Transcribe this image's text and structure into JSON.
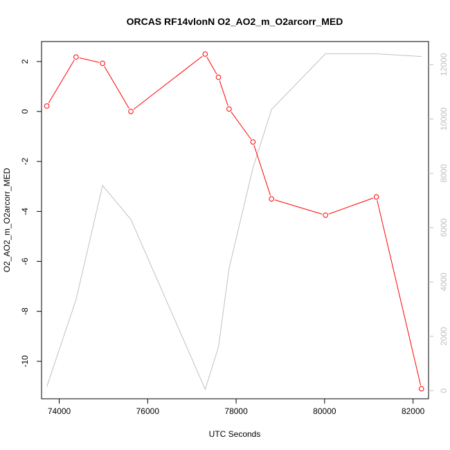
{
  "chart_data": {
    "type": "line",
    "title": "ORCAS RF14vlonN O2_AO2_m_O2arcorr_MED",
    "xlabel": "UTC Seconds",
    "ylabel": "O2_AO2_m_O2arcorr_MED",
    "xlim": [
      73600,
      82350
    ],
    "ylim": [
      -11.5,
      2.8
    ],
    "y2lim": [
      -300,
      12850
    ],
    "x_ticks": [
      74000,
      76000,
      78000,
      80000,
      82000
    ],
    "y_ticks": [
      -10,
      -8,
      -6,
      -4,
      -2,
      0,
      2
    ],
    "y2_ticks": [
      0,
      2000,
      4000,
      6000,
      8000,
      10000,
      12000
    ],
    "series": [
      {
        "role": "primary",
        "color": "#ff0000",
        "marker": "open-circle",
        "x": [
          73720,
          74380,
          74980,
          75620,
          77300,
          77600,
          77840,
          78380,
          78800,
          80020,
          81170,
          82190
        ],
        "y": [
          0.22,
          2.18,
          1.93,
          0.0,
          2.3,
          1.37,
          0.1,
          -1.22,
          -3.5,
          -4.15,
          -3.42,
          -11.1
        ]
      },
      {
        "role": "secondary-axis",
        "color": "#c0c0c0",
        "marker": "none",
        "x": [
          73720,
          74380,
          74980,
          75620,
          77300,
          77600,
          77840,
          78380,
          78800,
          80020,
          81170,
          82190
        ],
        "y": [
          150,
          3350,
          7550,
          6300,
          50,
          1600,
          4500,
          8200,
          10350,
          12400,
          12400,
          12300
        ]
      }
    ]
  }
}
